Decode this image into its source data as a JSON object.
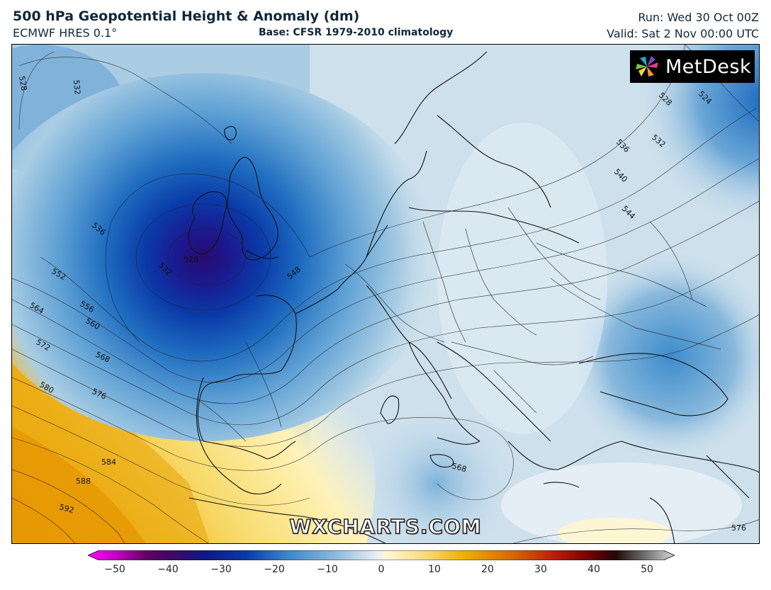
{
  "header": {
    "title": "500 hPa Geopotential Height & Anomaly (dm)",
    "model": "ECMWF HRES 0.1°",
    "base": "Base: CFSR 1979-2010 climatology",
    "run": "Run: Wed 30 Oct 00Z",
    "valid": "Valid: Sat 2 Nov 00:00 UTC"
  },
  "logo": {
    "text": "MetDesk",
    "icon": "metdesk-pinwheel-icon"
  },
  "watermark": "WXCHARTS.COM",
  "colorbar": {
    "min": -50,
    "max": 50,
    "tick_labels": [
      "−50",
      "−40",
      "−30",
      "−20",
      "−10",
      "0",
      "10",
      "20",
      "30",
      "40",
      "50"
    ],
    "colors": [
      "#e000e0",
      "#6a0070",
      "#2a0a80",
      "#0a3aa0",
      "#3a8ad0",
      "#dde8f0",
      "#fff4c0",
      "#e8b000",
      "#c85000",
      "#8a0000",
      "#c0c0c0"
    ]
  },
  "contour_labels": [
    {
      "text": "528",
      "region": "north-atlantic-west"
    },
    {
      "text": "532",
      "region": "north-atlantic"
    },
    {
      "text": "536",
      "region": "atlantic-west-of-ireland"
    },
    {
      "text": "532",
      "region": "low-center-west"
    },
    {
      "text": "528",
      "region": "low-center"
    },
    {
      "text": "552",
      "region": "atlantic-west"
    },
    {
      "text": "556",
      "region": "atlantic-southwest"
    },
    {
      "text": "560",
      "region": "atlantic-southwest"
    },
    {
      "text": "564",
      "region": "atlantic-southwest"
    },
    {
      "text": "568",
      "region": "biscay-west"
    },
    {
      "text": "572",
      "region": "atlantic-southwest"
    },
    {
      "text": "576",
      "region": "iberia-west"
    },
    {
      "text": "580",
      "region": "atlantic-south"
    },
    {
      "text": "584",
      "region": "atlantic-south"
    },
    {
      "text": "588",
      "region": "atlantic-south"
    },
    {
      "text": "592",
      "region": "atlantic-south"
    },
    {
      "text": "548",
      "region": "english-channel"
    },
    {
      "text": "568",
      "region": "ionian-sea"
    },
    {
      "text": "576",
      "region": "eastern-mediterranean"
    },
    {
      "text": "528",
      "region": "russia-north"
    },
    {
      "text": "524",
      "region": "russia-northeast"
    },
    {
      "text": "536",
      "region": "russia"
    },
    {
      "text": "532",
      "region": "russia-east"
    },
    {
      "text": "540",
      "region": "russia"
    },
    {
      "text": "544",
      "region": "russia-south"
    }
  ]
}
